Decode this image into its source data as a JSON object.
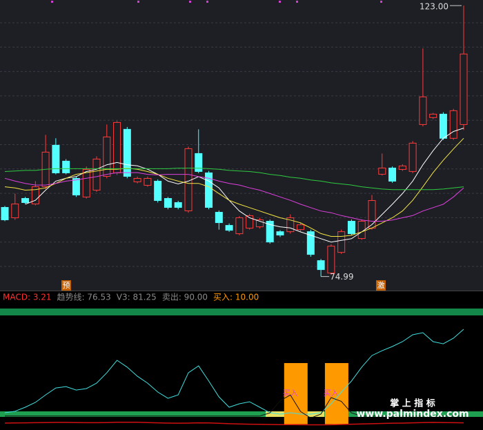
{
  "chart_data": {
    "type": "candlestick",
    "ylim": [
      72.5,
      124
    ],
    "up_color": "#ff3b3b",
    "down_color": "#54ffff",
    "open": [
      87.24,
      85.4,
      88.83,
      87.85,
      90.91,
      98.26,
      95.44,
      92.38,
      89.08,
      90.3,
      92.75,
      93.36,
      101.08,
      91.77,
      91.16,
      91.89,
      88.83,
      88.1,
      86.63,
      96.79,
      93.36,
      86.38,
      84.05,
      82.58,
      83.56,
      83.8,
      84.79,
      82.94,
      82.94,
      83.31,
      82.94,
      77.81,
      75.6,
      79.27,
      84.79,
      81.73,
      83.56,
      93.12,
      94.22,
      93.97,
      93.61,
      101.93,
      103.16,
      103.77,
      99.49,
      101.93
    ],
    "close": [
      85.04,
      87.85,
      88.1,
      90.91,
      97.04,
      93.36,
      93.36,
      89.44,
      93.97,
      95.81,
      99.73,
      102.3,
      92.75,
      92.38,
      92.38,
      88.46,
      87.24,
      87.24,
      97.65,
      93.61,
      87.24,
      84.54,
      83.19,
      85.4,
      85.77,
      85.04,
      81.11,
      82.34,
      85.4,
      84.16,
      78.91,
      76.22,
      80.38,
      82.94,
      82.58,
      84.79,
      88.46,
      94.22,
      91.89,
      94.59,
      98.63,
      106.83,
      103.77,
      99.49,
      104.38,
      114.43
    ],
    "low": [
      84.79,
      85.04,
      87.9,
      87.6,
      90.5,
      93.1,
      93.1,
      89.1,
      88.8,
      90.0,
      92.4,
      93.0,
      92.4,
      91.5,
      90.9,
      88.1,
      86.9,
      86.9,
      86.3,
      93.3,
      86.9,
      83.3,
      82.9,
      82.3,
      83.3,
      83.5,
      80.8,
      82.0,
      82.6,
      83.0,
      78.5,
      74.99,
      75.3,
      79.0,
      82.3,
      81.5,
      83.3,
      92.9,
      91.6,
      93.7,
      93.3,
      101.6,
      102.9,
      99.2,
      99.2,
      100.95
    ],
    "high": [
      87.5,
      89.69,
      89.1,
      91.9,
      100.1,
      99.5,
      95.8,
      92.7,
      94.5,
      96.3,
      101.93,
      102.55,
      101.5,
      92.7,
      92.7,
      92.2,
      89.1,
      88.4,
      98.02,
      101.08,
      93.7,
      86.7,
      84.4,
      85.7,
      86.1,
      85.4,
      85.1,
      83.2,
      86.0,
      84.5,
      83.3,
      78.1,
      80.7,
      83.3,
      85.1,
      85.1,
      89.44,
      96.79,
      94.5,
      94.9,
      99.0,
      115.41,
      104.0,
      104.1,
      104.7,
      123.0
    ],
    "series": [
      {
        "color": "#ffffff",
        "values": [
          null,
          null,
          87.8,
          88.5,
          90.3,
          91.9,
          92.4,
          92.7,
          93.6,
          94.0,
          94.8,
          95.2,
          94.8,
          94.6,
          94.0,
          93.1,
          91.9,
          91.4,
          91.9,
          92.7,
          91.9,
          90.7,
          88.5,
          86.6,
          85.4,
          84.8,
          84.2,
          83.8,
          83.6,
          82.9,
          82.3,
          81.7,
          81.1,
          81.4,
          81.7,
          82.9,
          84.2,
          86.0,
          87.8,
          89.7,
          91.9,
          94.8,
          97.3,
          99.5,
          100.7,
          101.3
        ]
      },
      {
        "color": "#f5e642",
        "values": [
          90.9,
          90.7,
          90.3,
          90.4,
          90.7,
          91.5,
          92.4,
          93.1,
          93.4,
          93.7,
          94.0,
          94.0,
          94.2,
          94.0,
          93.6,
          93.1,
          92.4,
          91.9,
          91.5,
          91.5,
          90.9,
          89.7,
          88.5,
          87.8,
          87.2,
          86.6,
          86.0,
          85.4,
          85.0,
          84.5,
          83.6,
          82.6,
          82.1,
          82.1,
          82.3,
          82.9,
          83.6,
          84.5,
          85.4,
          86.6,
          88.5,
          90.9,
          93.4,
          95.6,
          97.6,
          99.5
        ]
      },
      {
        "color": "#e040e0",
        "values": [
          92.4,
          91.9,
          91.5,
          91.2,
          91.2,
          91.5,
          91.9,
          92.1,
          92.4,
          92.7,
          93.1,
          93.4,
          93.4,
          93.4,
          93.1,
          93.0,
          93.1,
          93.1,
          93.1,
          92.7,
          92.4,
          91.9,
          91.5,
          91.2,
          90.7,
          90.3,
          89.7,
          89.1,
          88.5,
          87.8,
          87.2,
          86.6,
          86.3,
          85.8,
          85.4,
          85.0,
          84.8,
          84.8,
          85.0,
          85.4,
          85.8,
          86.6,
          87.2,
          87.8,
          89.1,
          90.7
        ]
      },
      {
        "color": "#2ecc40",
        "values": [
          93.6,
          93.7,
          93.8,
          93.8,
          94.0,
          94.1,
          94.1,
          94.1,
          94.1,
          94.1,
          94.1,
          94.1,
          94.1,
          94.1,
          94.1,
          94.1,
          94.1,
          94.2,
          94.2,
          94.2,
          94.1,
          94.0,
          93.8,
          93.7,
          93.6,
          93.4,
          93.1,
          92.9,
          92.6,
          92.4,
          92.1,
          91.9,
          91.6,
          91.4,
          91.2,
          90.9,
          90.7,
          90.5,
          90.4,
          90.4,
          90.4,
          90.4,
          90.4,
          90.5,
          90.7,
          90.9
        ]
      }
    ],
    "annotations": [
      "123.00",
      "74.99"
    ],
    "markers": [
      "预",
      "激"
    ],
    "lower": {
      "ylim": [
        0,
        93
      ],
      "header": [
        {
          "label": "MACD: 3.21",
          "color": "#ff3030"
        },
        {
          "label": "趋势线: 76.53",
          "color": "#8a8a8a"
        },
        {
          "label": "V3: 81.25",
          "color": "#8a8a8a"
        },
        {
          "label": "卖出: 90.00",
          "color": "#8a8a8a",
          "value": 90
        },
        {
          "label": "买入: 10.00",
          "color": "#ff9900",
          "value": 10
        }
      ],
      "series": [
        {
          "color": "#40e0e0",
          "values": [
            11.1,
            12.2,
            15.4,
            19.2,
            25.1,
            30.5,
            31.6,
            28.9,
            30.0,
            34.3,
            42.4,
            52.2,
            46.8,
            39.7,
            34.3,
            27.3,
            22.4,
            25.1,
            42.4,
            47.8,
            35.9,
            23.5,
            15.4,
            18.1,
            19.7,
            15.4,
            11.1,
            10.0,
            11.1,
            10.0,
            10.0,
            11.1,
            18.1,
            27.3,
            35.9,
            46.8,
            55.9,
            59.7,
            63.0,
            66.8,
            72.2,
            73.8,
            66.8,
            65.1,
            69.5,
            76.5
          ]
        },
        {
          "color": "#111111",
          "values": [
            8.5,
            8.5,
            8.5,
            8.5,
            8.5,
            8.5,
            8.5,
            8.5,
            8.5,
            8.5,
            8.5,
            8.5,
            8.5,
            8.5,
            8.5,
            8.5,
            8.5,
            8.5,
            8.5,
            8.5,
            8.5,
            8.5,
            8.5,
            8.5,
            8.5,
            8.5,
            11,
            20.5,
            25,
            12,
            7,
            10,
            23,
            20,
            11,
            8.5,
            8.5,
            8.5,
            8.5,
            8.5,
            8.5,
            8.5,
            8.5,
            8.5,
            8.5,
            8.5
          ]
        },
        {
          "color": "#d01010",
          "values": [
            3.0,
            3.1,
            3.2,
            3.3,
            3.4,
            3.5,
            3.5,
            3.4,
            3.3,
            3.3,
            3.4,
            3.6,
            3.7,
            3.6,
            3.4,
            3.2,
            3.0,
            2.9,
            3.0,
            3.2,
            3.1,
            2.8,
            2.5,
            2.3,
            2.1,
            2.0,
            1.9,
            1.8,
            1.8,
            1.7,
            1.6,
            1.6,
            1.7,
            1.9,
            2.1,
            2.3,
            2.5,
            2.7,
            2.9,
            3.0,
            3.2,
            3.4,
            3.5,
            3.4,
            3.3,
            3.21
          ]
        }
      ],
      "signal": {
        "label": "买入",
        "color": "#ff9900",
        "values": [
          null,
          null,
          null,
          null,
          null,
          null,
          null,
          null,
          null,
          null,
          null,
          null,
          null,
          null,
          null,
          null,
          null,
          null,
          null,
          null,
          null,
          null,
          null,
          null,
          null,
          null,
          null,
          null,
          50,
          null,
          null,
          null,
          50,
          null,
          null,
          null,
          null,
          null,
          null,
          null,
          null,
          null,
          null,
          null,
          null,
          null
        ]
      },
      "watermark": [
        "掌 上 指 标",
        "www.palmindex.com"
      ]
    }
  }
}
